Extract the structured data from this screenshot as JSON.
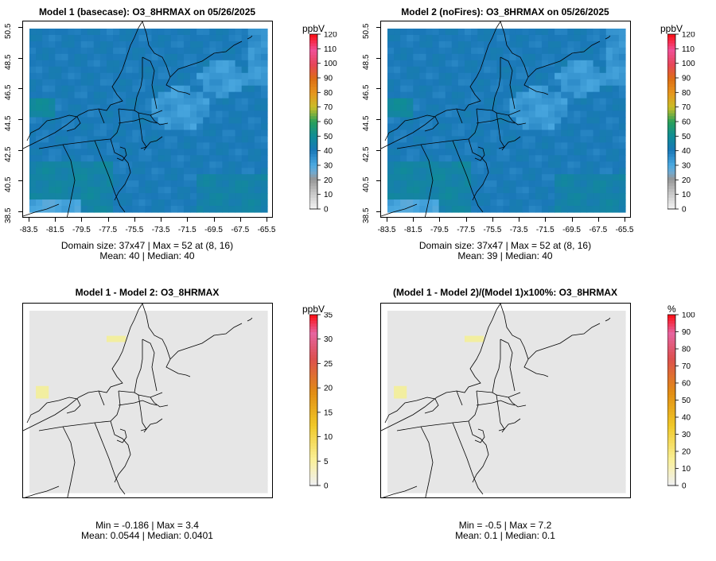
{
  "panels": [
    {
      "id": "p1",
      "title": "Model 1 (basecase): O3_8HRMAX on 05/26/2025",
      "unit": "ppbV",
      "stats_line1": "Domain size: 37x47 | Max = 52 at (8, 16)",
      "stats_line2": "Mean: 40 |  Median: 40",
      "colorbar_ticks": [
        "0",
        "10",
        "20",
        "30",
        "40",
        "50",
        "60",
        "70",
        "80",
        "90",
        "100",
        "110",
        "120"
      ],
      "field": "ozone",
      "show_axes": true
    },
    {
      "id": "p2",
      "title": "Model 2 (noFires): O3_8HRMAX on 05/26/2025",
      "unit": "ppbV",
      "stats_line1": "Domain size: 37x47 | Max = 52 at (8, 16)",
      "stats_line2": "Mean: 39 |  Median: 40",
      "colorbar_ticks": [
        "0",
        "10",
        "20",
        "30",
        "40",
        "50",
        "60",
        "70",
        "80",
        "90",
        "100",
        "110",
        "120"
      ],
      "field": "ozone",
      "show_axes": true
    },
    {
      "id": "p3",
      "title": "Model 1 - Model 2: O3_8HRMAX",
      "unit": "ppbV",
      "stats_line1": "Min = -0.186 | Max = 3.4",
      "stats_line2": "Mean: 0.0544 |  Median: 0.0401",
      "colorbar_ticks": [
        "0",
        "5",
        "10",
        "15",
        "20",
        "25",
        "30",
        "35"
      ],
      "field": "diff",
      "show_axes": false
    },
    {
      "id": "p4",
      "title": "(Model 1 - Model 2)/(Model 1)x100%: O3_8HRMAX",
      "unit": "%",
      "stats_line1": "Min = -0.5 | Max = 7.2",
      "stats_line2": "Mean: 0.1 |  Median: 0.1",
      "colorbar_ticks": [
        "0",
        "10",
        "20",
        "30",
        "40",
        "50",
        "60",
        "70",
        "80",
        "90",
        "100"
      ],
      "field": "diff",
      "show_axes": false
    }
  ],
  "x_ticks": [
    "-83.5",
    "-81.5",
    "-79.5",
    "-77.5",
    "-75.5",
    "-73.5",
    "-71.5",
    "-69.5",
    "-67.5",
    "-65.5"
  ],
  "y_ticks": [
    "38.5",
    "40.5",
    "42.5",
    "44.5",
    "46.5",
    "48.5",
    "50.5"
  ],
  "colors": {
    "ozone_dominant": "#1a78b8",
    "ozone_low": "#4aa8e0",
    "ozone_high": "#1e9a7a",
    "diff_background": "#e6e6e6",
    "diff_highlight": "#f2eea0"
  }
}
